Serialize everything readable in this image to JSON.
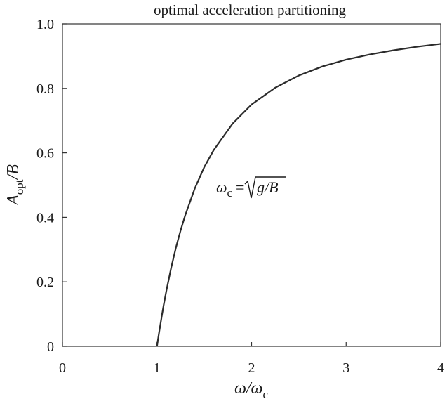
{
  "chart_data": {
    "type": "line",
    "title": "optimal acceleration partitioning",
    "xlabel": {
      "main": "ω/ω",
      "sub": "c"
    },
    "ylabel": {
      "main": "A",
      "sub": "opt",
      "tail": "/B"
    },
    "xlim": [
      0,
      4
    ],
    "ylim": [
      0,
      1
    ],
    "x_ticks": [
      0,
      1,
      2,
      3,
      4
    ],
    "x_tick_labels": [
      "0",
      "1",
      "2",
      "3",
      "4"
    ],
    "y_ticks": [
      0,
      0.2,
      0.4,
      0.6,
      0.8,
      1.0
    ],
    "y_tick_labels": [
      "0",
      "0.2",
      "0.4",
      "0.6",
      "0.8",
      "1.0"
    ],
    "grid": false,
    "annotation": {
      "omega": "ω",
      "sub": "c",
      "eq": "=",
      "radicand": "g/B",
      "anchor_data": [
        1.6,
        0.5
      ]
    },
    "series": [
      {
        "color": "#2b2b2b",
        "x": [
          1.0,
          1.005,
          1.01,
          1.02,
          1.03,
          1.05,
          1.07,
          1.1,
          1.15,
          1.2,
          1.25,
          1.3,
          1.4,
          1.5,
          1.6,
          1.8,
          2.0,
          2.25,
          2.5,
          2.75,
          3.0,
          3.25,
          3.5,
          3.75,
          4.0
        ],
        "y": [
          0.0,
          0.01,
          0.02,
          0.039,
          0.057,
          0.093,
          0.127,
          0.174,
          0.244,
          0.306,
          0.36,
          0.408,
          0.49,
          0.556,
          0.609,
          0.691,
          0.75,
          0.802,
          0.84,
          0.868,
          0.889,
          0.905,
          0.918,
          0.929,
          0.938
        ]
      }
    ]
  }
}
